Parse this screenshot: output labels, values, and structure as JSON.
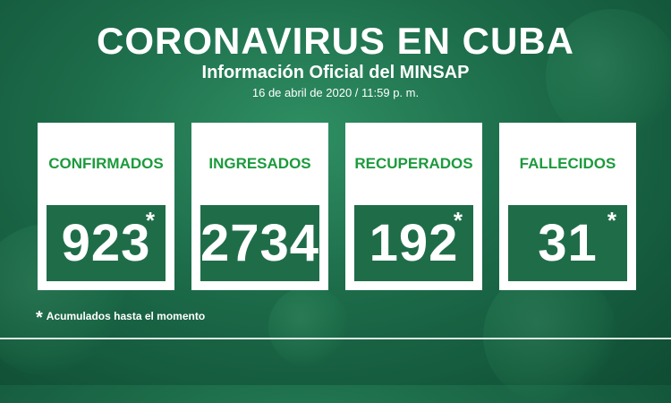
{
  "header": {
    "title": "CORONAVIRUS EN CUBA",
    "subtitle": "Información Oficial del MINSAP",
    "date": "16 de abril de 2020 / 11:59 p. m."
  },
  "cards": [
    {
      "label": "CONFIRMADOS",
      "value": "923",
      "star": "*"
    },
    {
      "label": "INGRESADOS",
      "value": "2734",
      "star": ""
    },
    {
      "label": "RECUPERADOS",
      "value": "192",
      "star": "*"
    },
    {
      "label": "FALLECIDOS",
      "value": "31",
      "star": "*"
    }
  ],
  "footnote": {
    "star": "*",
    "text": "Acumulados hasta el momento"
  },
  "colors": {
    "label_green": "#1c9a3d",
    "value_box": "#1f6d48",
    "background": "#1c6b49"
  }
}
